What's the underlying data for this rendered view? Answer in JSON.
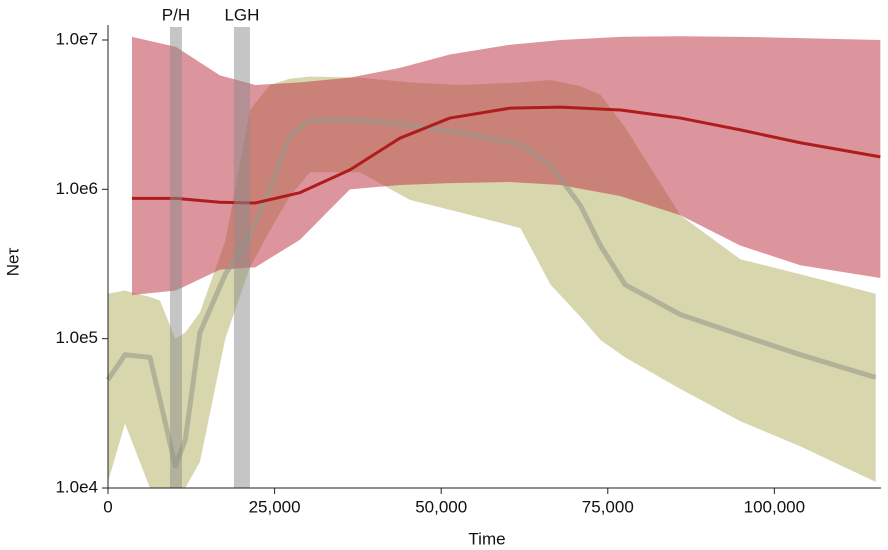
{
  "chart_data": {
    "type": "band-line",
    "x_label": "Time",
    "y_label": "Neτ",
    "log_y": true,
    "xlim": [
      0,
      116000
    ],
    "ylim": [
      10000,
      12600000
    ],
    "xticks": [
      0,
      {
        "value": 25000,
        "label": "25,000"
      },
      {
        "value": 50000,
        "label": "50,000"
      },
      {
        "value": 75000,
        "label": "75,000"
      },
      {
        "value": 100000,
        "label": "100,000"
      }
    ],
    "yticks": [
      {
        "value": 10000,
        "label": "1.0e4"
      },
      {
        "value": 100000,
        "label": "1.0e5"
      },
      {
        "value": 1000000,
        "label": "1.0e6"
      },
      {
        "value": 10000000,
        "label": "1.0e7"
      }
    ],
    "annotations": [
      {
        "label": "P/H",
        "xrange": [
          9300,
          11100
        ]
      },
      {
        "label": "LGH",
        "xrange": [
          18900,
          21300
        ]
      }
    ],
    "series": [
      {
        "color": "#b8b46a",
        "line_color": "#9a9a8a",
        "x": [
          0,
          2550,
          6300,
          7800,
          10100,
          11600,
          13800,
          17600,
          21300,
          24300,
          27300,
          30300,
          37800,
          45300,
          52900,
          61900,
          66400,
          70900,
          73900,
          77600,
          85900,
          94900,
          103900,
          115200
        ],
        "values": [
          53000,
          78000,
          75000,
          39000,
          14000,
          21000,
          110000,
          270000,
          490000,
          1000000,
          2300000,
          2900000,
          2900000,
          2700000,
          2400000,
          2000000,
          1450000,
          780000,
          420000,
          230000,
          145000,
          106000,
          78000,
          55000
        ],
        "upper": [
          200000,
          210000,
          190000,
          180000,
          100000,
          110000,
          150000,
          450000,
          3400000,
          5000000,
          5500000,
          5700000,
          5600000,
          5200000,
          5000000,
          5200000,
          5400000,
          4900000,
          4300000,
          2600000,
          670000,
          340000,
          270000,
          200000
        ],
        "lower": [
          11000,
          27000,
          10000,
          10000,
          10000,
          10000,
          15000,
          100000,
          300000,
          530000,
          900000,
          1300000,
          1300000,
          850000,
          700000,
          550000,
          230000,
          140000,
          98000,
          75000,
          46000,
          28000,
          19000,
          11000
        ]
      },
      {
        "color": "#bf3d4c",
        "line_color": "#b01c1c",
        "x": [
          3600,
          10200,
          16800,
          22100,
          28800,
          36300,
          43800,
          51300,
          60400,
          67900,
          76900,
          85900,
          94900,
          103900,
          115900
        ],
        "values": [
          870000,
          870000,
          820000,
          810000,
          950000,
          1350000,
          2200000,
          3000000,
          3500000,
          3550000,
          3400000,
          3000000,
          2500000,
          2050000,
          1650000
        ],
        "upper": [
          10500000,
          9000000,
          5800000,
          5000000,
          5200000,
          5600000,
          6500000,
          8000000,
          9300000,
          10000000,
          10500000,
          10600000,
          10500000,
          10300000,
          10000000
        ],
        "lower": [
          196000,
          210000,
          290000,
          300000,
          460000,
          1000000,
          1070000,
          1100000,
          1120000,
          1070000,
          900000,
          670000,
          420000,
          310000,
          255000
        ]
      }
    ]
  }
}
